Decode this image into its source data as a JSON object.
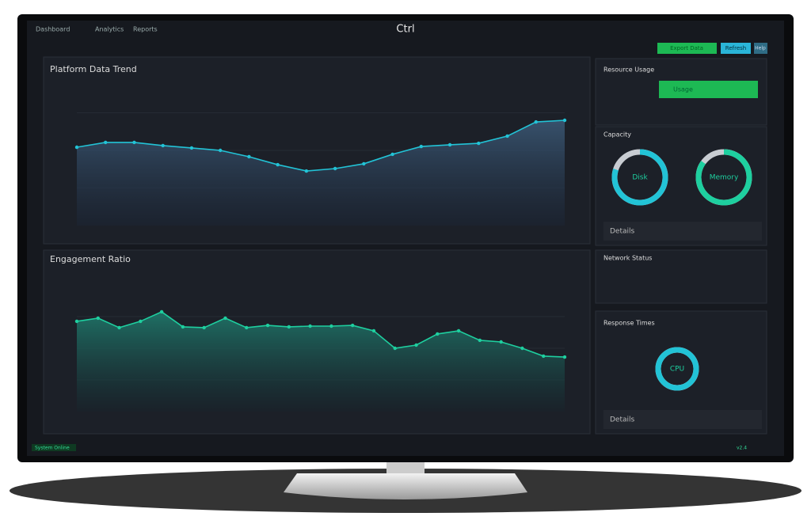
{
  "header": {
    "title": "Ctrl",
    "nav": [
      "Dashboard",
      "Analytics",
      "Reports"
    ],
    "buttons": [
      "Export Data",
      "Refresh",
      "Help"
    ]
  },
  "chart_data": [
    {
      "type": "line",
      "title": "Platform Data Trend",
      "color": "#22c3d6",
      "ylim": [
        0,
        100
      ],
      "values": [
        52.1,
        55.3,
        55.3,
        53.2,
        51.6,
        50,
        45.8,
        40.5,
        36.3,
        37.9,
        41.1,
        47.4,
        52.6,
        53.7,
        54.7,
        59.5,
        68.9,
        70
      ]
    },
    {
      "type": "line",
      "title": "Engagement Ratio",
      "color": "#1ecf9f",
      "ylim": [
        0,
        100
      ],
      "values": [
        71.3,
        73.8,
        66.3,
        71.3,
        78.8,
        66.9,
        66.3,
        73.8,
        66.3,
        68.1,
        66.9,
        67.5,
        67.5,
        68.1,
        63.8,
        50,
        52.5,
        61.3,
        63.8,
        56.3,
        55,
        50,
        43.8,
        43.1
      ]
    }
  ],
  "panels": {
    "usage": {
      "title": "Resource Usage",
      "bar_label": "Usage"
    },
    "capacity": {
      "title": "Capacity",
      "footer": "Details"
    },
    "network": {
      "title": "Network Status"
    },
    "response": {
      "title": "Response Times",
      "footer": "Details"
    }
  },
  "gauges": [
    {
      "label": "Disk",
      "value": 80,
      "color": "#22c3d6"
    },
    {
      "label": "Memory",
      "value": 85,
      "color": "#1ecf9f"
    },
    {
      "label": "CPU",
      "value": 100,
      "color": "#22c3d6"
    }
  ],
  "footer": {
    "status": "System Online",
    "version": "v2.4"
  }
}
